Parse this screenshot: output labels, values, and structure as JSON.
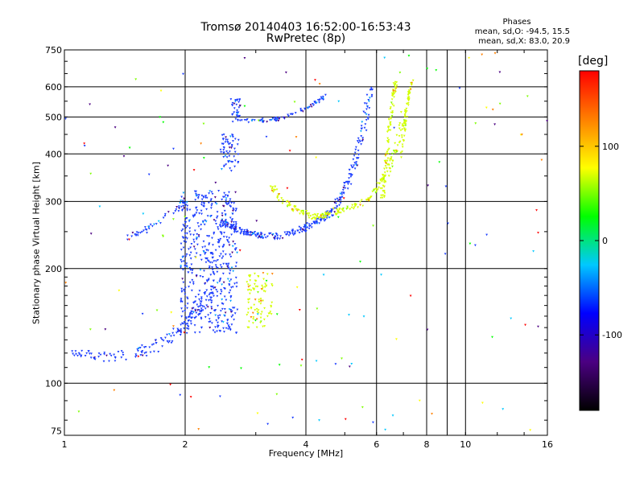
{
  "chart_data": {
    "type": "scatter",
    "title": "Tromsø 20140403 16:52:00-16:53:43",
    "subtitle": "RwPretec (8p)",
    "xlabel": "Frequency [MHz]",
    "ylabel": "Stationary phase Virtual Height [km]",
    "x_scale": "log",
    "y_scale": "log",
    "xlim": [
      1,
      16
    ],
    "ylim": [
      73,
      750
    ],
    "x_ticks": [
      1,
      2,
      4,
      6,
      8,
      10,
      16
    ],
    "y_ticks": [
      75,
      100,
      200,
      300,
      400,
      500,
      600,
      750
    ],
    "grid_x": [
      2,
      4,
      6,
      8,
      9,
      10
    ],
    "grid_y": [
      100,
      200,
      300,
      400,
      500,
      600
    ],
    "stats": {
      "heading": "Phases",
      "o_line": "mean, sd,O: -94.5, 15.5",
      "x_line": "mean, sd,X: 83.0, 20.9"
    },
    "colorbar": {
      "unit": "[deg]",
      "range": [
        -180,
        180
      ],
      "ticks": [
        100,
        0,
        -100
      ],
      "colors": [
        "#000000",
        "#4b0082",
        "#0000ff",
        "#00c8ff",
        "#00ff00",
        "#ffff00",
        "#ff8000",
        "#ff0000"
      ]
    },
    "series": [
      {
        "mode": "O",
        "phase_deg": -94.5,
        "color": "#1a3cff",
        "segments": [
          {
            "kind": "curve",
            "points": [
              [
                1.05,
                120
              ],
              [
                1.15,
                118
              ],
              [
                1.3,
                117
              ],
              [
                1.5,
                119
              ],
              [
                1.7,
                125
              ],
              [
                1.85,
                132
              ],
              [
                2.0,
                142
              ],
              [
                2.2,
                160
              ],
              [
                2.4,
                180
              ]
            ],
            "spread": 0.06,
            "density": 140
          },
          {
            "kind": "band",
            "x": [
              1.95,
              2.7
            ],
            "y": [
              135,
              320
            ],
            "density": 520
          },
          {
            "kind": "band",
            "x": [
              2.45,
              2.72
            ],
            "y": [
              360,
              450
            ],
            "density": 60
          },
          {
            "kind": "curve",
            "points": [
              [
                1.4,
                240
              ],
              [
                1.55,
                248
              ],
              [
                1.75,
                268
              ],
              [
                1.9,
                285
              ],
              [
                2.0,
                300
              ]
            ],
            "spread": 0.03,
            "density": 45
          },
          {
            "kind": "curve",
            "points": [
              [
                2.45,
                265
              ],
              [
                2.7,
                252
              ],
              [
                3.0,
                245
              ],
              [
                3.4,
                243
              ],
              [
                3.8,
                250
              ],
              [
                4.2,
                262
              ],
              [
                4.6,
                280
              ],
              [
                5.0,
                320
              ],
              [
                5.3,
                380
              ],
              [
                5.6,
                480
              ],
              [
                5.8,
                600
              ]
            ],
            "spread": 0.035,
            "density": 320
          },
          {
            "kind": "curve",
            "points": [
              [
                2.6,
                490
              ],
              [
                3.0,
                488
              ],
              [
                3.4,
                493
              ],
              [
                3.8,
                512
              ],
              [
                4.2,
                540
              ],
              [
                4.5,
                570
              ]
            ],
            "spread": 0.02,
            "density": 80
          },
          {
            "kind": "band",
            "x": [
              2.6,
              2.75
            ],
            "y": [
              500,
              560
            ],
            "density": 30
          }
        ]
      },
      {
        "mode": "X",
        "phase_deg": 83.0,
        "color": "#d4ff00",
        "segments": [
          {
            "kind": "band",
            "x": [
              2.85,
              3.3
            ],
            "y": [
              140,
              195
            ],
            "density": 90
          },
          {
            "kind": "curve",
            "points": [
              [
                3.3,
                330
              ],
              [
                3.5,
                300
              ],
              [
                3.8,
                285
              ],
              [
                4.2,
                272
              ],
              [
                4.6,
                278
              ],
              [
                5.0,
                285
              ],
              [
                5.5,
                295
              ],
              [
                6.0,
                320
              ],
              [
                6.4,
                360
              ],
              [
                6.8,
                430
              ],
              [
                7.1,
                560
              ]
            ],
            "spread": 0.03,
            "density": 220
          },
          {
            "kind": "curve",
            "points": [
              [
                6.2,
                300
              ],
              [
                6.35,
                380
              ],
              [
                6.45,
                460
              ],
              [
                6.6,
                560
              ],
              [
                6.7,
                620
              ]
            ],
            "spread": 0.02,
            "density": 90
          },
          {
            "kind": "curve",
            "points": [
              [
                6.9,
                390
              ],
              [
                7.05,
                470
              ],
              [
                7.2,
                560
              ],
              [
                7.35,
                620
              ]
            ],
            "spread": 0.015,
            "density": 60
          }
        ]
      },
      {
        "mode": "noise",
        "color": "#7f7f7f",
        "segments": [
          {
            "kind": "band",
            "x": [
              1.0,
              16.0
            ],
            "y": [
              75,
              740
            ],
            "density": 150
          }
        ]
      }
    ]
  }
}
